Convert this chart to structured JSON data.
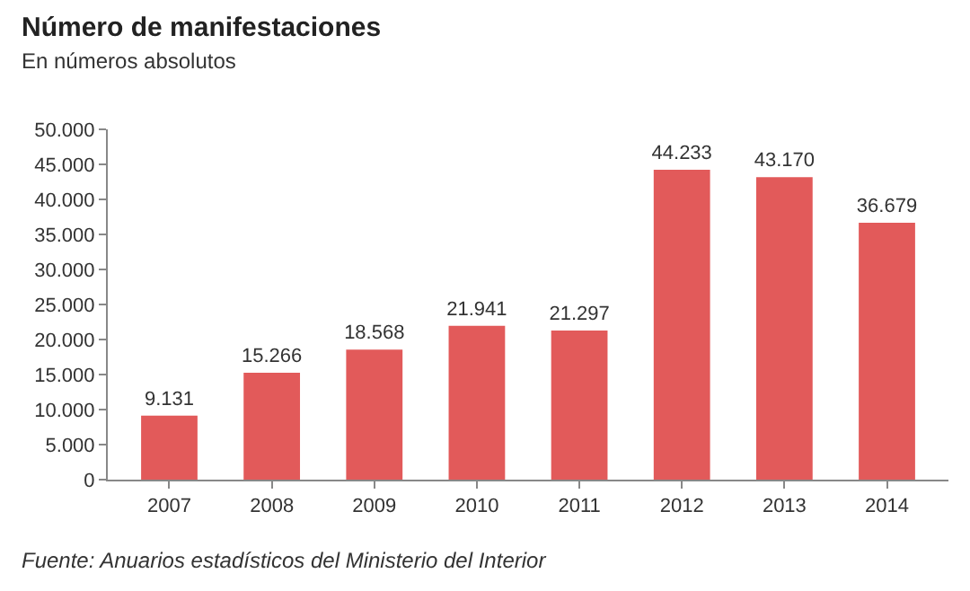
{
  "chart_data": {
    "type": "bar",
    "title": "Número de manifestaciones",
    "subtitle": "En números absolutos",
    "categories": [
      "2007",
      "2008",
      "2009",
      "2010",
      "2011",
      "2012",
      "2013",
      "2014"
    ],
    "values": [
      9131,
      15266,
      18568,
      21941,
      21297,
      44233,
      43170,
      36679
    ],
    "value_labels": [
      "9.131",
      "15.266",
      "18.568",
      "21.941",
      "21.297",
      "44.233",
      "43.170",
      "36.679"
    ],
    "color": "#e25a5a",
    "ylim": [
      0,
      50000
    ],
    "yticks": [
      0,
      {
        "value": 5000,
        "label": "5.000"
      },
      {
        "value": 10000,
        "label": "10.000"
      },
      {
        "value": 15000,
        "label": "15.000"
      },
      {
        "value": 20000,
        "label": "20.000"
      },
      {
        "value": 25000,
        "label": "25.000"
      },
      {
        "value": 30000,
        "label": "30.000"
      },
      {
        "value": 35000,
        "label": "35.000"
      },
      {
        "value": 40000,
        "label": "40.000"
      },
      {
        "value": 45000,
        "label": "45.000"
      },
      {
        "value": 50000,
        "label": "50.000"
      }
    ],
    "annotations": [
      "Fuente: Anuarios estadísticos del Ministerio del Interior"
    ]
  }
}
